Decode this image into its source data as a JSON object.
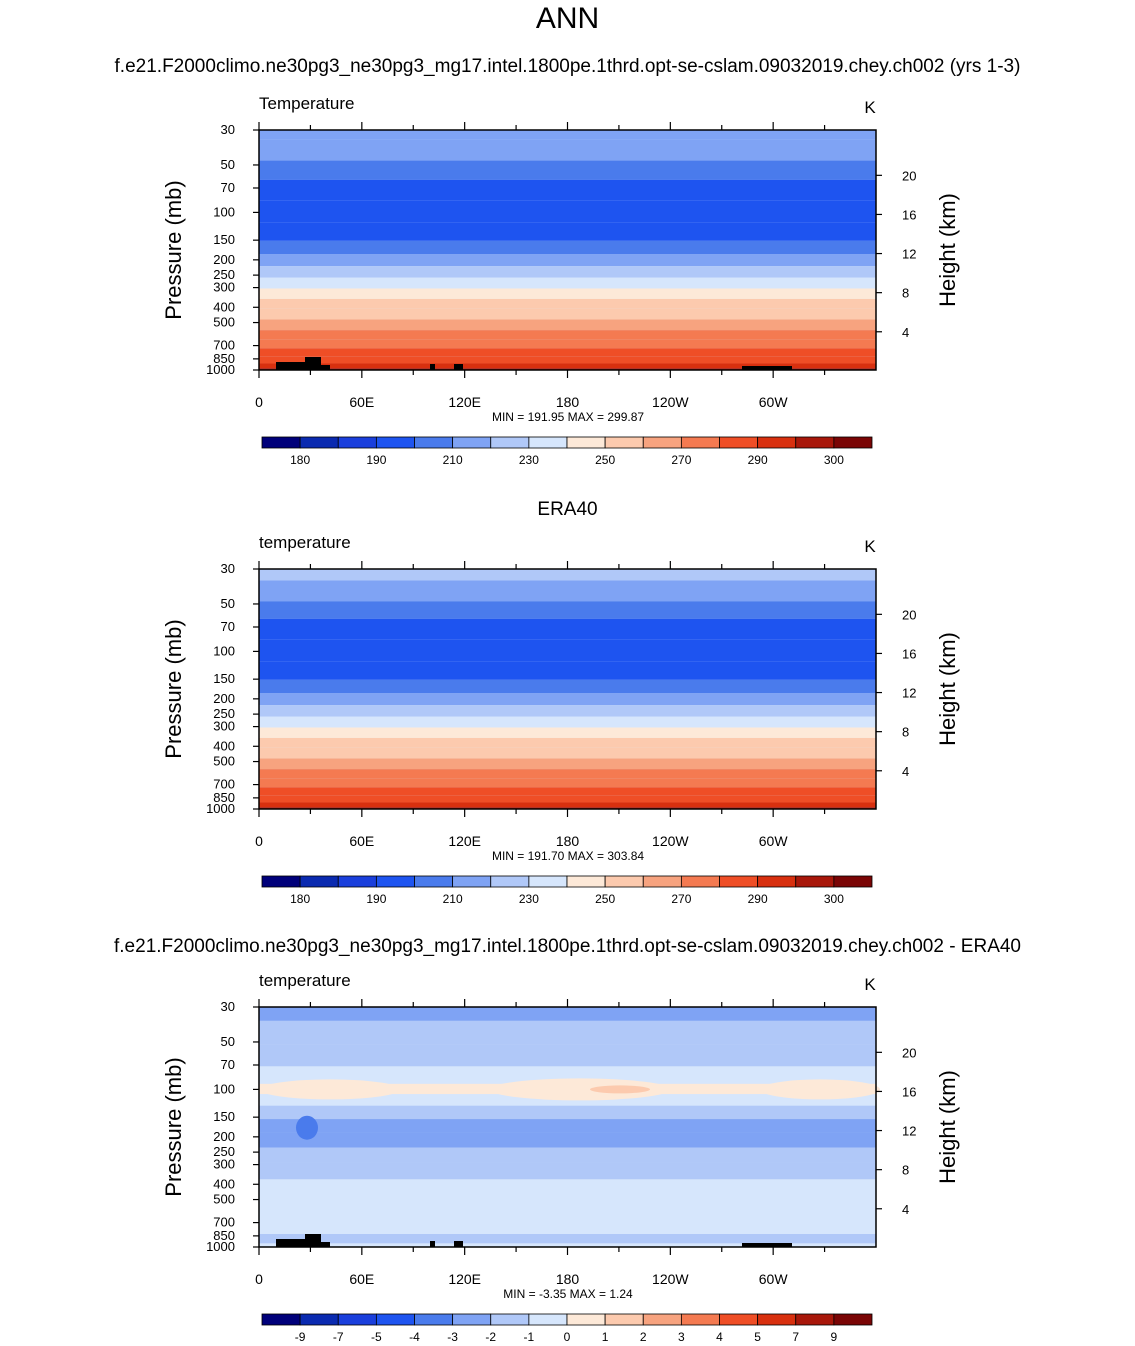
{
  "page": {
    "season_title": "ANN",
    "model_case_title": "f.e21.F2000climo.ne30pg3_ne30pg3_mg17.intel.1800pe.1thrd.opt-se-cslam.09032019.chey.ch002 (yrs 1-3)",
    "obs_title": "ERA40",
    "diff_title": "f.e21.F2000climo.ne30pg3_ne30pg3_mg17.intel.1800pe.1thrd.opt-se-cslam.09032019.chey.ch002 - ERA40"
  },
  "chart_data": [
    {
      "type": "heatmap",
      "panel": "model",
      "variable_label": "Temperature",
      "units": "K",
      "ylabel_left": "Pressure (mb)",
      "ylabel_right": "Height (km)",
      "x_ticks": [
        "0",
        "60E",
        "120E",
        "180",
        "120W",
        "60W"
      ],
      "pressure_ticks": [
        30,
        50,
        70,
        100,
        150,
        200,
        250,
        300,
        400,
        500,
        700,
        850,
        1000
      ],
      "height_ticks": [
        20,
        16,
        12,
        8,
        4
      ],
      "ylim_mb": [
        1000,
        30
      ],
      "min_max_text": "MIN = 191.95  MAX = 299.87",
      "min": 191.95,
      "max": 299.87,
      "colorbar_labels": [
        "180",
        "190",
        "210",
        "230",
        "250",
        "270",
        "290",
        "300"
      ],
      "colorbar_colors": [
        "#00007a",
        "#0a2ab0",
        "#1a3fdc",
        "#1e54f0",
        "#4a7bec",
        "#7fa3f4",
        "#b0c8f8",
        "#d6e6fc",
        "#fde9d8",
        "#fccaae",
        "#f7a37f",
        "#f47a51",
        "#ef4e26",
        "#d8300f",
        "#a8170a",
        "#7a0505"
      ],
      "layers": [
        {
          "p": 30,
          "v": 218
        },
        {
          "p": 40,
          "v": 210
        },
        {
          "p": 55,
          "v": 204
        },
        {
          "p": 70,
          "v": 198
        },
        {
          "p": 100,
          "v": 196
        },
        {
          "p": 135,
          "v": 198
        },
        {
          "p": 170,
          "v": 205
        },
        {
          "p": 200,
          "v": 212
        },
        {
          "p": 240,
          "v": 222
        },
        {
          "p": 280,
          "v": 232
        },
        {
          "p": 330,
          "v": 242
        },
        {
          "p": 380,
          "v": 250
        },
        {
          "p": 440,
          "v": 258
        },
        {
          "p": 520,
          "v": 264
        },
        {
          "p": 600,
          "v": 270
        },
        {
          "p": 680,
          "v": 276
        },
        {
          "p": 780,
          "v": 282
        },
        {
          "p": 870,
          "v": 287
        },
        {
          "p": 950,
          "v": 292
        },
        {
          "p": 1000,
          "v": 296
        }
      ]
    },
    {
      "type": "heatmap",
      "panel": "obs",
      "variable_label": "temperature",
      "units": "K",
      "ylabel_left": "Pressure (mb)",
      "ylabel_right": "Height (km)",
      "x_ticks": [
        "0",
        "60E",
        "120E",
        "180",
        "120W",
        "60W"
      ],
      "pressure_ticks": [
        30,
        50,
        70,
        100,
        150,
        200,
        250,
        300,
        400,
        500,
        700,
        850,
        1000
      ],
      "height_ticks": [
        20,
        16,
        12,
        8,
        4
      ],
      "ylim_mb": [
        1000,
        30
      ],
      "min_max_text": "MIN = 191.70  MAX = 303.84",
      "min": 191.7,
      "max": 303.84,
      "colorbar_labels": [
        "180",
        "190",
        "210",
        "230",
        "250",
        "270",
        "290",
        "300"
      ],
      "colorbar_colors": [
        "#00007a",
        "#0a2ab0",
        "#1a3fdc",
        "#1e54f0",
        "#4a7bec",
        "#7fa3f4",
        "#b0c8f8",
        "#d6e6fc",
        "#fde9d8",
        "#fccaae",
        "#f7a37f",
        "#f47a51",
        "#ef4e26",
        "#d8300f",
        "#a8170a",
        "#7a0505"
      ],
      "layers": [
        {
          "p": 30,
          "v": 222
        },
        {
          "p": 42,
          "v": 215
        },
        {
          "p": 55,
          "v": 206
        },
        {
          "p": 70,
          "v": 199
        },
        {
          "p": 100,
          "v": 196
        },
        {
          "p": 135,
          "v": 198
        },
        {
          "p": 170,
          "v": 205
        },
        {
          "p": 200,
          "v": 212
        },
        {
          "p": 240,
          "v": 222
        },
        {
          "p": 280,
          "v": 232
        },
        {
          "p": 330,
          "v": 242
        },
        {
          "p": 380,
          "v": 250
        },
        {
          "p": 440,
          "v": 258
        },
        {
          "p": 520,
          "v": 264
        },
        {
          "p": 600,
          "v": 270
        },
        {
          "p": 680,
          "v": 276
        },
        {
          "p": 780,
          "v": 282
        },
        {
          "p": 870,
          "v": 287
        },
        {
          "p": 950,
          "v": 292
        },
        {
          "p": 1000,
          "v": 296
        }
      ]
    },
    {
      "type": "heatmap",
      "panel": "difference",
      "variable_label": "temperature",
      "units": "K",
      "ylabel_left": "Pressure (mb)",
      "ylabel_right": "Height (km)",
      "x_ticks": [
        "0",
        "60E",
        "120E",
        "180",
        "120W",
        "60W"
      ],
      "pressure_ticks": [
        30,
        50,
        70,
        100,
        150,
        200,
        250,
        300,
        400,
        500,
        700,
        850,
        1000
      ],
      "height_ticks": [
        20,
        16,
        12,
        8,
        4
      ],
      "ylim_mb": [
        1000,
        30
      ],
      "min_max_text": "MIN =  -3.35  MAX =    1.24",
      "min": -3.35,
      "max": 1.24,
      "colorbar_labels": [
        "-9",
        "-7",
        "-5",
        "-4",
        "-3",
        "-2",
        "-1",
        "0",
        "1",
        "2",
        "3",
        "4",
        "5",
        "7",
        "9"
      ],
      "colorbar_colors": [
        "#00007a",
        "#0a2ab0",
        "#1a3fdc",
        "#1e54f0",
        "#4a7bec",
        "#7fa3f4",
        "#b0c8f8",
        "#d6e6fc",
        "#fde9d8",
        "#fccaae",
        "#f7a37f",
        "#f47a51",
        "#ef4e26",
        "#d8300f",
        "#a8170a",
        "#7a0505"
      ],
      "layers": [
        {
          "p": 30,
          "v": -2.5
        },
        {
          "p": 45,
          "v": -1.5
        },
        {
          "p": 60,
          "v": -1.5
        },
        {
          "p": 85,
          "v": -0.5
        },
        {
          "p": 100,
          "v": 0.5
        },
        {
          "p": 115,
          "v": -0.5
        },
        {
          "p": 140,
          "v": -1.5
        },
        {
          "p": 170,
          "v": -2.5
        },
        {
          "p": 210,
          "v": -2.5
        },
        {
          "p": 260,
          "v": -1.5
        },
        {
          "p": 330,
          "v": -1.5
        },
        {
          "p": 420,
          "v": -0.5
        },
        {
          "p": 600,
          "v": -0.5
        },
        {
          "p": 760,
          "v": -0.5
        },
        {
          "p": 900,
          "v": -1.5
        },
        {
          "p": 1000,
          "v": -0.5
        }
      ]
    }
  ]
}
